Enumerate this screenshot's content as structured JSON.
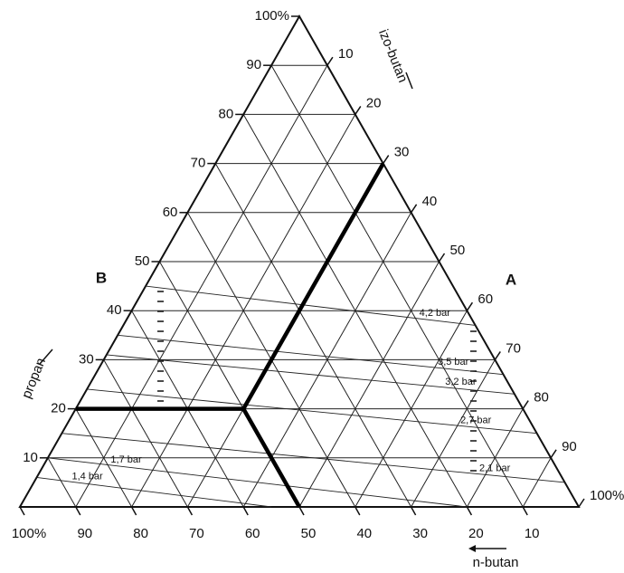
{
  "chart_data": {
    "type": "ternary",
    "axes": {
      "left": {
        "label": "propan",
        "ticks": [
          10,
          20,
          30,
          40,
          50,
          60,
          70,
          80,
          90,
          {
            "value": 100,
            "label": "100%"
          }
        ]
      },
      "right": {
        "label": "izo-butan",
        "ticks": [
          10,
          20,
          30,
          40,
          50,
          60,
          70,
          80,
          90,
          {
            "value": 100,
            "label": "100%"
          }
        ]
      },
      "bottom": {
        "label": "n-butan",
        "ticks": [
          {
            "value": 100,
            "label": "100%"
          },
          90,
          80,
          70,
          60,
          50,
          40,
          30,
          20,
          10
        ]
      }
    },
    "grid": true,
    "annotations": [
      "B",
      "A"
    ],
    "isobars": [
      {
        "label": "4,2 bar",
        "from": [
          45,
          0
        ],
        "to": [
          37,
          63
        ]
      },
      {
        "label": "3,5 bar",
        "from": [
          35,
          0
        ],
        "to": [
          27,
          73
        ]
      },
      {
        "label": "3,2 bar",
        "from": [
          31,
          0
        ],
        "to": [
          23,
          77
        ]
      },
      {
        "label": "2,7 bar",
        "from": [
          24,
          0
        ],
        "to": [
          15,
          85
        ]
      },
      {
        "label": "2,1 bar",
        "from": [
          15,
          0
        ],
        "to": [
          5,
          95
        ]
      },
      {
        "label": "1,7 bar",
        "from": [
          10,
          0
        ],
        "to": [
          0,
          80
        ]
      },
      {
        "label": "1,4 bar",
        "from": [
          6,
          0
        ],
        "to": [
          0,
          45
        ]
      }
    ],
    "paths": [
      [
        [
          70,
          30
        ],
        [
          20,
          30
        ],
        [
          0,
          50
        ]
      ],
      [
        [
          20,
          30
        ],
        [
          20,
          0
        ]
      ]
    ],
    "color": "#000000"
  }
}
